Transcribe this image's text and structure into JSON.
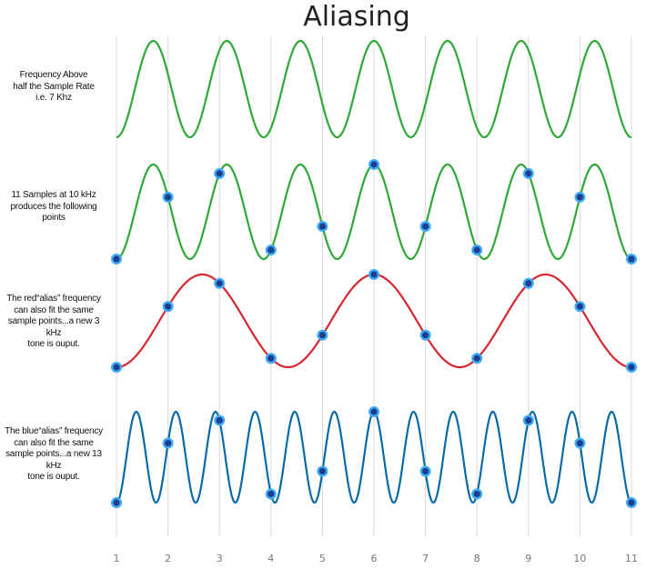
{
  "title": "Aliasing",
  "rows": [
    {
      "label_lines": [
        "Frequency  Above",
        "half the Sample Rate",
        "i.e. 7 Khz"
      ],
      "color": "#2fa838",
      "cycles": 7,
      "samples": false
    },
    {
      "label_lines": [
        "11 Samples at 10 kHz",
        "produces the following",
        "points"
      ],
      "color": "#2fa838",
      "cycles": 7,
      "samples": true
    },
    {
      "label_lines": [
        "The red“alias” frequency",
        "can also fit the same",
        "sample points...a new 3 kHz",
        "tone is ouput."
      ],
      "color": "#d7262e",
      "cycles": 3,
      "samples": true
    },
    {
      "label_lines": [
        "The blue“alias” frequency",
        "can also fit the same",
        "sample points...a new 13 kHz",
        "tone is ouput."
      ],
      "color": "#0b6aa6",
      "cycles": 13,
      "samples": true
    }
  ],
  "sample_ticks": [
    "1",
    "2",
    "3",
    "4",
    "5",
    "6",
    "7",
    "8",
    "9",
    "10",
    "11"
  ],
  "colors": {
    "gridline": "#d8d8d8",
    "dot_fill": "#1b3f8f",
    "dot_ring": "#3fa9f5"
  }
}
